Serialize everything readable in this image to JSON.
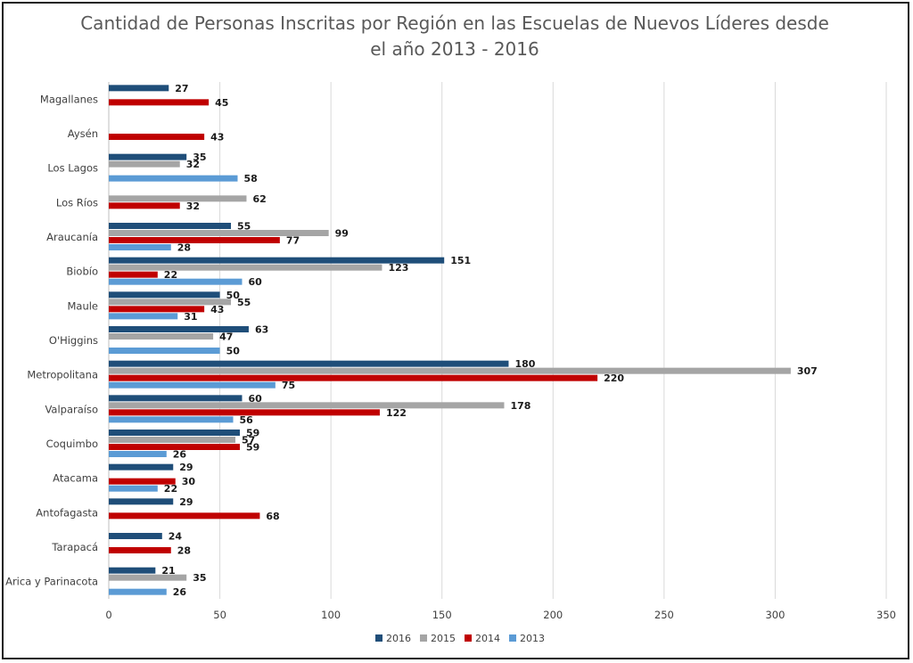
{
  "chart_data": {
    "type": "bar",
    "orientation": "horizontal",
    "title_line1": "Cantidad de Personas Inscritas por Región en las Escuelas de Nuevos Líderes desde",
    "title_line2": "el año 2013 - 2016",
    "categories": [
      "Magallanes",
      "Aysén",
      "Los Lagos",
      "Los Ríos",
      "Araucanía",
      "Biobío",
      "Maule",
      "O'Higgins",
      "Metropolitana",
      "Valparaíso",
      "Coquimbo",
      "Atacama",
      "Antofagasta",
      "Tarapacá",
      "Arica y Parinacota"
    ],
    "series": [
      {
        "name": "2016",
        "color": "#1f4e79",
        "values": [
          27,
          null,
          35,
          null,
          55,
          151,
          50,
          63,
          180,
          60,
          59,
          29,
          29,
          24,
          21
        ]
      },
      {
        "name": "2015",
        "color": "#a5a5a5",
        "values": [
          null,
          null,
          32,
          62,
          99,
          123,
          55,
          47,
          307,
          178,
          57,
          null,
          null,
          null,
          35
        ]
      },
      {
        "name": "2014",
        "color": "#c00000",
        "values": [
          45,
          43,
          null,
          32,
          77,
          22,
          43,
          null,
          220,
          122,
          59,
          30,
          68,
          28,
          null
        ]
      },
      {
        "name": "2013",
        "color": "#5b9bd5",
        "values": [
          null,
          null,
          58,
          null,
          28,
          60,
          31,
          50,
          75,
          56,
          26,
          22,
          null,
          null,
          26
        ]
      }
    ],
    "xlim": [
      0,
      350
    ],
    "xticks": [
      0,
      50,
      100,
      150,
      200,
      250,
      300,
      350
    ],
    "grid": true,
    "legend": "bottom"
  }
}
